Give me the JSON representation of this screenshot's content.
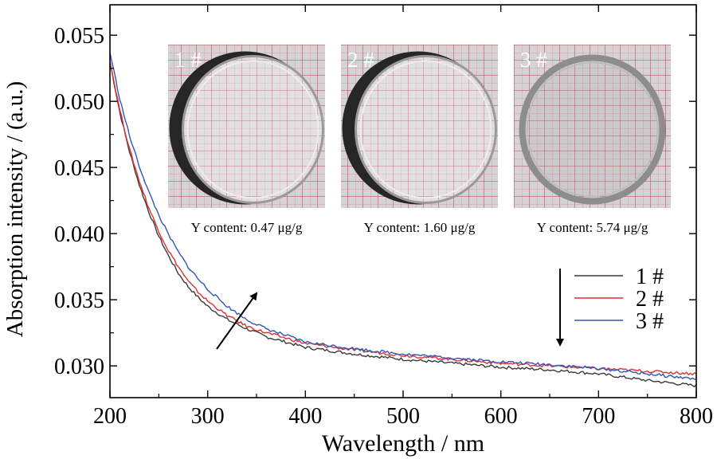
{
  "chart_data": {
    "type": "line",
    "xlabel": "Wavelength / nm",
    "ylabel": "Absorption intensity / (a.u.)",
    "xlim": [
      200,
      800
    ],
    "ylim": [
      0.0276,
      0.0573
    ],
    "xticks": [
      200,
      300,
      400,
      500,
      600,
      700,
      800
    ],
    "xtick_labels": [
      "200",
      "300",
      "400",
      "500",
      "600",
      "700",
      "800"
    ],
    "yticks": [
      0.03,
      0.035,
      0.04,
      0.045,
      0.05,
      0.055
    ],
    "ytick_labels": [
      "0.030",
      "0.035",
      "0.040",
      "0.045",
      "0.050",
      "0.055"
    ],
    "grid": false,
    "legend_position": "right",
    "series": [
      {
        "name": "1 #",
        "color": "#3a3a3a",
        "x": [
          200,
          210,
          220,
          230,
          240,
          250,
          260,
          270,
          280,
          290,
          300,
          320,
          340,
          360,
          380,
          400,
          450,
          500,
          550,
          600,
          650,
          700,
          750,
          800
        ],
        "y": [
          0.053,
          0.0492,
          0.0462,
          0.0437,
          0.0416,
          0.0398,
          0.0383,
          0.037,
          0.036,
          0.0352,
          0.0345,
          0.0335,
          0.0328,
          0.0322,
          0.0318,
          0.0314,
          0.0309,
          0.0305,
          0.0302,
          0.0299,
          0.0297,
          0.0294,
          0.0289,
          0.0285
        ]
      },
      {
        "name": "2 #",
        "color": "#e03030",
        "x": [
          200,
          210,
          220,
          230,
          240,
          250,
          260,
          270,
          280,
          290,
          300,
          320,
          340,
          360,
          380,
          400,
          450,
          500,
          550,
          600,
          650,
          700,
          750,
          800
        ],
        "y": [
          0.053,
          0.0494,
          0.0464,
          0.044,
          0.0419,
          0.0402,
          0.0387,
          0.0375,
          0.0364,
          0.0356,
          0.0349,
          0.0338,
          0.033,
          0.0325,
          0.0321,
          0.0317,
          0.0312,
          0.0308,
          0.0305,
          0.0302,
          0.03,
          0.0298,
          0.0296,
          0.0294
        ]
      },
      {
        "name": "3 #",
        "color": "#3056b8",
        "x": [
          200,
          210,
          220,
          230,
          240,
          250,
          260,
          270,
          280,
          290,
          300,
          320,
          340,
          360,
          380,
          400,
          450,
          500,
          550,
          600,
          650,
          700,
          750,
          800
        ],
        "y": [
          0.0537,
          0.0502,
          0.0474,
          0.0451,
          0.0431,
          0.0414,
          0.0399,
          0.0386,
          0.0375,
          0.0366,
          0.0358,
          0.0345,
          0.0335,
          0.0328,
          0.0323,
          0.0318,
          0.0313,
          0.0309,
          0.0306,
          0.0303,
          0.0301,
          0.0298,
          0.0294,
          0.029
        ]
      }
    ],
    "insets": [
      {
        "label": "1 #",
        "caption": "Y content: 0.47 μg/g",
        "sample": 1
      },
      {
        "label": "2 #",
        "caption": "Y content: 1.60 μg/g",
        "sample": 2
      },
      {
        "label": "3 #",
        "caption": "Y content: 5.74 μg/g",
        "sample": 3
      }
    ],
    "annotations": [
      {
        "type": "arrow",
        "direction": "up-right",
        "near_x": 320
      },
      {
        "type": "arrow",
        "direction": "down",
        "near_x": 660
      }
    ]
  }
}
